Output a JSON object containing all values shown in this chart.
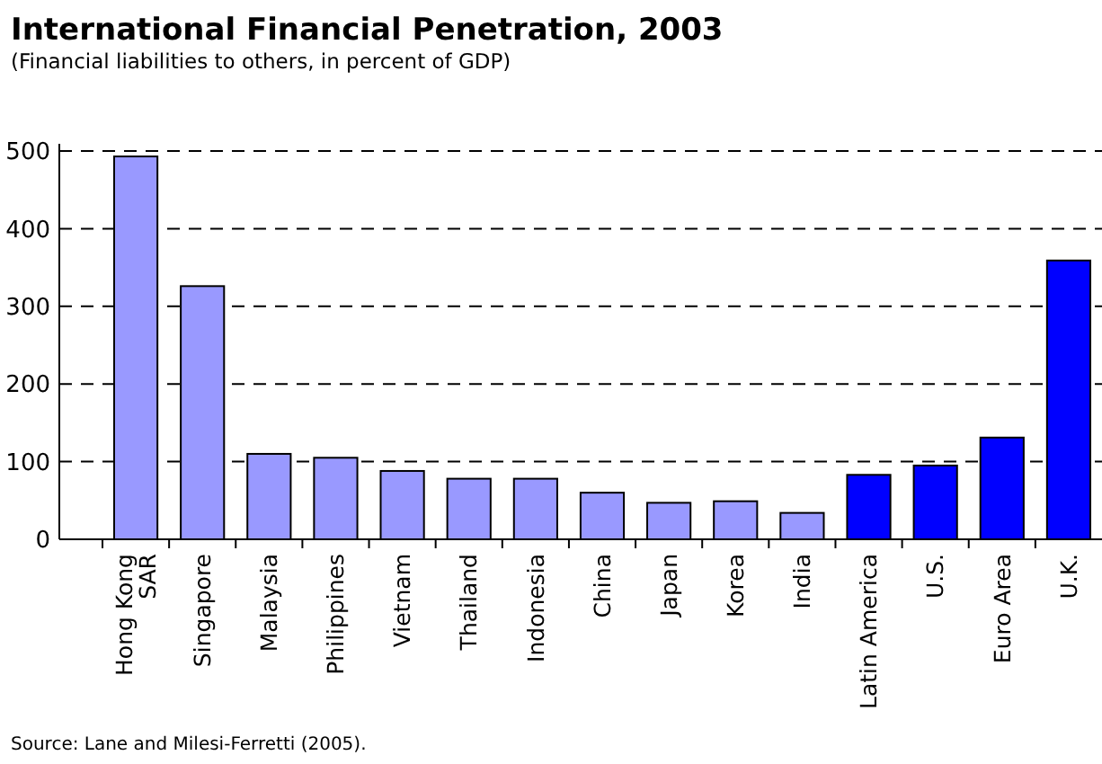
{
  "chart_data": {
    "type": "bar",
    "title": "International Financial Penetration, 2003",
    "subtitle": "(Financial liabilities to others, in percent of GDP)",
    "categories": [
      "Hong Kong\nSAR",
      "Singapore",
      "Malaysia",
      "Philippines",
      "Vietnam",
      "Thailand",
      "Indonesia",
      "China",
      "Japan",
      "Korea",
      "India",
      "Latin America",
      "U.S.",
      "Euro Area",
      "U.K."
    ],
    "values": [
      493,
      326,
      110,
      105,
      88,
      78,
      78,
      60,
      47,
      49,
      34,
      83,
      95,
      131,
      359
    ],
    "colors": [
      "#9999ff",
      "#9999ff",
      "#9999ff",
      "#9999ff",
      "#9999ff",
      "#9999ff",
      "#9999ff",
      "#9999ff",
      "#9999ff",
      "#9999ff",
      "#9999ff",
      "#0000ff",
      "#0000ff",
      "#0000ff",
      "#0000ff"
    ],
    "ylim": [
      0,
      500
    ],
    "yticks": [
      0,
      100,
      200,
      300,
      400,
      500
    ],
    "grid": "y",
    "line_style": "dashed",
    "annotations": [
      "Source: Lane and Milesi-Ferretti (2005)."
    ]
  }
}
